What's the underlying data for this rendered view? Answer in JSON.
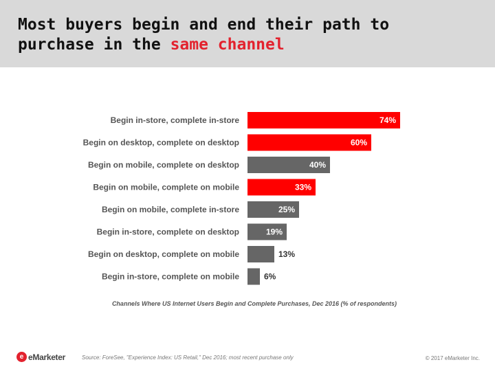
{
  "header": {
    "title_line1": "Most buyers begin and end their path to",
    "title_line2_plain": "purchase in the ",
    "title_line2_highlight": "same channel"
  },
  "chart_data": {
    "type": "bar",
    "orientation": "horizontal",
    "categories": [
      "Begin in-store, complete in-store",
      "Begin on desktop, complete on desktop",
      "Begin on mobile, complete on desktop",
      "Begin on mobile, complete on mobile",
      "Begin on mobile, complete in-store",
      "Begin in-store, complete on desktop",
      "Begin on desktop, complete on mobile",
      "Begin in-store, complete on mobile"
    ],
    "values": [
      74,
      60,
      40,
      33,
      25,
      19,
      13,
      6
    ],
    "value_labels": [
      "74%",
      "60%",
      "40%",
      "33%",
      "25%",
      "19%",
      "13%",
      "6%"
    ],
    "highlight": [
      true,
      true,
      false,
      true,
      false,
      false,
      false,
      false
    ],
    "colors": {
      "highlight": "#ff0000",
      "normal": "#666666"
    },
    "caption": "Channels Where US Internet Users Begin and Complete Purchases, Dec 2016 (% of respondents)",
    "xlim": [
      0,
      100
    ],
    "grid": false,
    "legend": "none"
  },
  "footer": {
    "logo_text": "eMarketer",
    "source": "Source: ForeSee, \"Experience Index: US Retail,\" Dec 2016; most recent purchase only",
    "copyright": "© 2017 eMarketer Inc."
  }
}
